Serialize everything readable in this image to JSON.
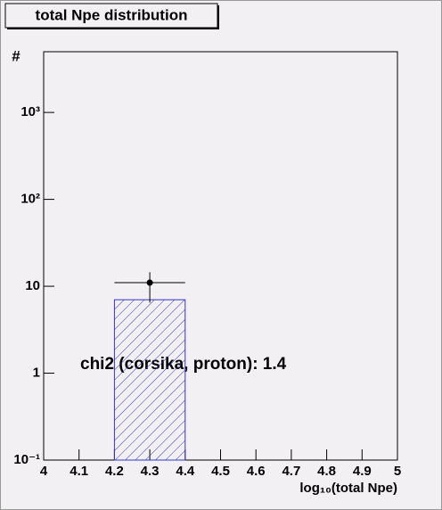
{
  "chart_data": {
    "type": "histogram",
    "title": "total Npe distribution",
    "xlabel": "log₁₀(total Npe)",
    "ylabel": "#",
    "annotation": "chi2 (corsika, proton): 1.4",
    "bins": [
      4.2,
      4.4
    ],
    "values": [
      7
    ],
    "color": "#3636c8",
    "points": {
      "x": [
        4.3
      ],
      "values": [
        11
      ],
      "xerr": [
        0.1
      ],
      "yerr_low": [
        4.5
      ],
      "yerr_high": [
        3.5
      ],
      "color": "#000000"
    },
    "xlim": [
      4,
      5
    ],
    "xticks": [
      4,
      4.1,
      4.2,
      4.3,
      4.4,
      4.5,
      4.6,
      4.7,
      4.8,
      4.9,
      5
    ],
    "ylim": [
      0.1,
      5000
    ],
    "log_y": true,
    "yticks": [
      {
        "value": 0.1,
        "label": "10⁻¹"
      },
      1,
      10,
      {
        "value": 100,
        "label": "10²"
      },
      {
        "value": 1000,
        "label": "10³"
      }
    ]
  }
}
